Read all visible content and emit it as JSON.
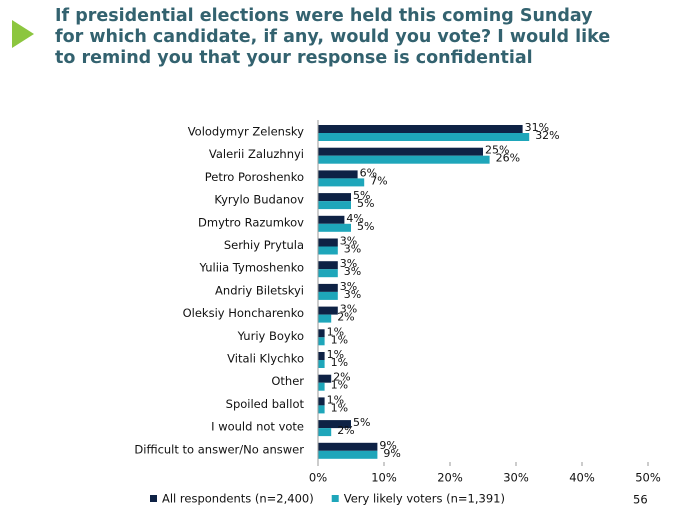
{
  "chart_data": {
    "type": "grouped-hbar",
    "title": "If presidential elections were held this coming Sunday for which candidate, if any, would you vote? I would like to remind you that your response is confidential",
    "categories": [
      "Volodymyr Zelensky",
      "Valerii Zaluzhnyi",
      "Petro Poroshenko",
      "Kyrylo Budanov",
      "Dmytro Razumkov",
      "Serhiy Prytula",
      "Yuliia Tymoshenko",
      "Andriy Biletskyi",
      "Oleksiy Honcharenko",
      "Yuriy Boyko",
      "Vitali Klychko",
      "Other",
      "Spoiled ballot",
      "I would not vote",
      "Difficult to answer/No answer"
    ],
    "series": [
      {
        "name": "All respondents (n=2,400)",
        "color": "#0e2245",
        "values": [
          31,
          25,
          6,
          5,
          4,
          3,
          3,
          3,
          3,
          1,
          1,
          2,
          1,
          5,
          9
        ],
        "value_labels": [
          "31%",
          "25%",
          "6%",
          "5%",
          "4%",
          "3%",
          "3%",
          "3%",
          "3%",
          "1%",
          "1%",
          "2%",
          "1%",
          "5%",
          "9%"
        ]
      },
      {
        "name": "Very likely voters (n=1,391)",
        "color": "#1ea6ba",
        "values": [
          32,
          26,
          7,
          5,
          5,
          3,
          3,
          3,
          2,
          1,
          1,
          1,
          1,
          2,
          9
        ],
        "value_labels": [
          "32%",
          "26%",
          "7%",
          "5%",
          "5%",
          "3%",
          "3%",
          "3%",
          "2%",
          "1%",
          "1%",
          "1%",
          "1%",
          "2%",
          "9%"
        ]
      }
    ],
    "xlim": [
      0,
      50
    ],
    "xticks": [
      {
        "value": 0,
        "label": "0%"
      },
      {
        "value": 10,
        "label": "10%"
      },
      {
        "value": 20,
        "label": "20%"
      },
      {
        "value": 30,
        "label": "30%"
      },
      {
        "value": 40,
        "label": "40%"
      },
      {
        "value": 50,
        "label": "50%"
      }
    ],
    "legend": "bottom"
  },
  "page_number": "56"
}
